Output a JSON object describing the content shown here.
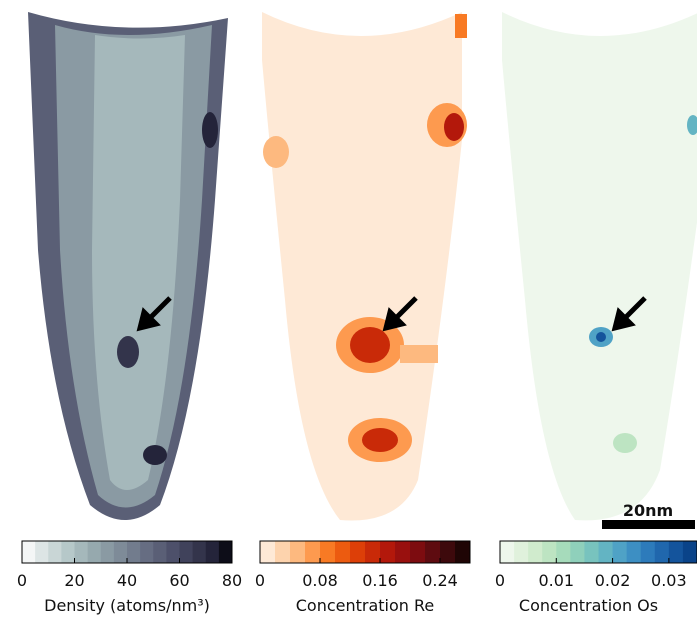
{
  "panels": [
    {
      "label": "Density (atoms/nm³)",
      "lim": [
        0,
        80
      ],
      "ticks": [
        0,
        20,
        40,
        60,
        80
      ],
      "colors": [
        "#f4f6f6",
        "#dde5e5",
        "#c9d6d6",
        "#b6c8c9",
        "#a5b8bb",
        "#96a9ae",
        "#8a9aa3",
        "#7e8b98",
        "#727c8d",
        "#666d82",
        "#5a5f76",
        "#4d506a",
        "#40425b",
        "#33344b",
        "#24243a",
        "#0d0d18"
      ]
    },
    {
      "label": "Concentration Re",
      "lim": [
        0,
        0.28
      ],
      "ticks": [
        0,
        0.08,
        0.16,
        0.24
      ],
      "colors": [
        "#fee9d6",
        "#fdd3ad",
        "#fdb97f",
        "#fd9a4f",
        "#f87a24",
        "#ec5b10",
        "#dd3f08",
        "#c92a08",
        "#b3180b",
        "#99100e",
        "#7d0c10",
        "#5e0b10",
        "#3d090c",
        "#1f0505"
      ]
    },
    {
      "label": "Concentration Os",
      "lim": [
        0,
        0.035
      ],
      "ticks": [
        0,
        0.01,
        0.02,
        0.03
      ],
      "colors": [
        "#eef7ec",
        "#e0f1dc",
        "#d0ebcd",
        "#bde4c2",
        "#a6dbbb",
        "#8fd0bb",
        "#78c3be",
        "#63b4c3",
        "#4fa2c6",
        "#3d8fc3",
        "#2d7bbb",
        "#2067ad",
        "#14549c",
        "#0a4389"
      ]
    }
  ],
  "scale_bar": "20nm"
}
